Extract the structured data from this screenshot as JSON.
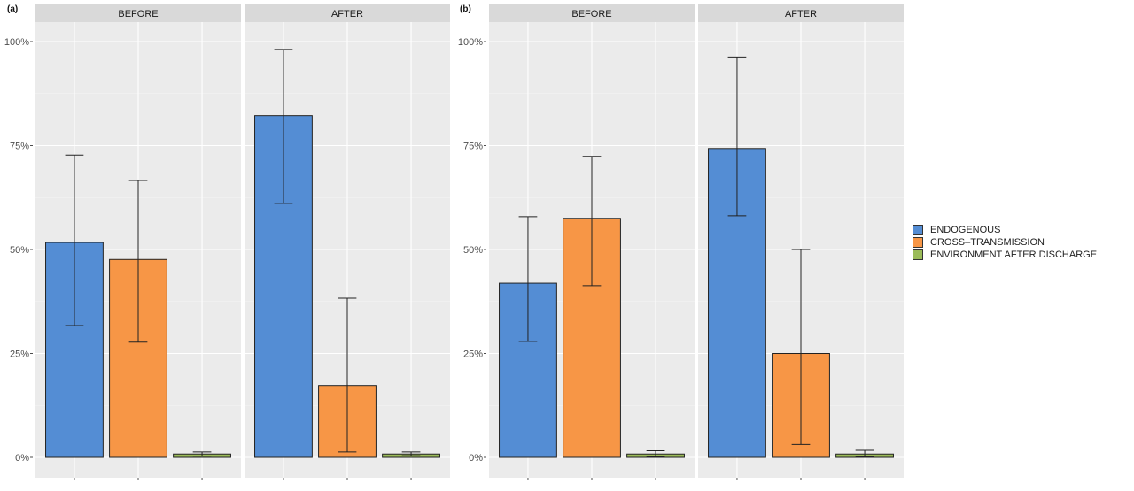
{
  "chart_data": [
    {
      "type": "bar",
      "panel_label": "(a)",
      "facets": [
        {
          "name": "BEFORE",
          "series": [
            {
              "category": "ENDOGENOUS",
              "value": 51.7,
              "error_low": 31.7,
              "error_high": 72.7
            },
            {
              "category": "CROSS–TRANSMISSION",
              "value": 47.6,
              "error_low": 27.7,
              "error_high": 66.6
            },
            {
              "category": "ENVIRONMENT AFTER DISCHARGE",
              "value": 0.8,
              "error_low": 0.3,
              "error_high": 1.3
            }
          ]
        },
        {
          "name": "AFTER",
          "series": [
            {
              "category": "ENDOGENOUS",
              "value": 82.2,
              "error_low": 61.1,
              "error_high": 98.1
            },
            {
              "category": "CROSS–TRANSMISSION",
              "value": 17.3,
              "error_low": 1.3,
              "error_high": 38.3
            },
            {
              "category": "ENVIRONMENT AFTER DISCHARGE",
              "value": 0.8,
              "error_low": 0.4,
              "error_high": 1.3
            }
          ]
        }
      ],
      "y_ticks": [
        "0%",
        "25%",
        "50%",
        "75%",
        "100%"
      ],
      "ylim": [
        0,
        105
      ],
      "grid": true
    },
    {
      "type": "bar",
      "panel_label": "(b)",
      "facets": [
        {
          "name": "BEFORE",
          "series": [
            {
              "category": "ENDOGENOUS",
              "value": 41.9,
              "error_low": 27.9,
              "error_high": 57.9
            },
            {
              "category": "CROSS–TRANSMISSION",
              "value": 57.5,
              "error_low": 41.3,
              "error_high": 72.4
            },
            {
              "category": "ENVIRONMENT AFTER DISCHARGE",
              "value": 0.8,
              "error_low": 0.2,
              "error_high": 1.6
            }
          ]
        },
        {
          "name": "AFTER",
          "series": [
            {
              "category": "ENDOGENOUS",
              "value": 74.3,
              "error_low": 58.1,
              "error_high": 96.3
            },
            {
              "category": "CROSS–TRANSMISSION",
              "value": 25.0,
              "error_low": 3.1,
              "error_high": 50.0
            },
            {
              "category": "ENVIRONMENT AFTER DISCHARGE",
              "value": 0.8,
              "error_low": 0.2,
              "error_high": 1.7
            }
          ]
        }
      ],
      "y_ticks": [
        "0%",
        "25%",
        "50%",
        "75%",
        "100%"
      ],
      "ylim": [
        0,
        105
      ],
      "grid": true
    }
  ],
  "legend": {
    "position": "right",
    "items": [
      {
        "label": "ENDOGENOUS",
        "color": "#548DD4"
      },
      {
        "label": "CROSS–TRANSMISSION",
        "color": "#F79646"
      },
      {
        "label": "ENVIRONMENT AFTER DISCHARGE",
        "color": "#9BBB59"
      }
    ]
  },
  "colors": {
    "panel_bg": "#EBEBEB",
    "strip_bg": "#D9D9D9",
    "grid_major": "#FFFFFF",
    "outline": "#222222"
  }
}
